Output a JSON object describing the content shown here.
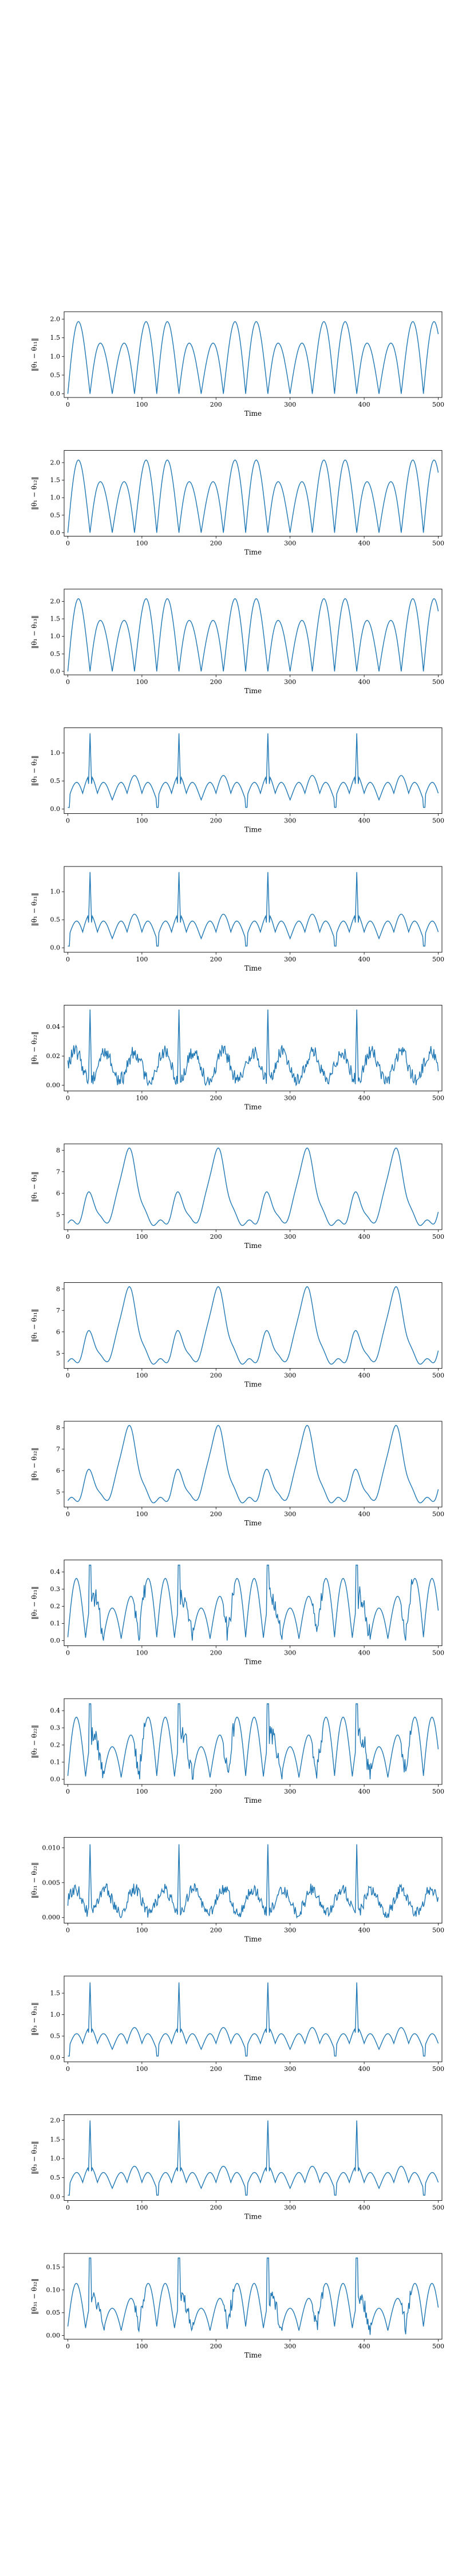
{
  "figure": {
    "background": "#ffffff",
    "line_color": "#1f77b4"
  },
  "chart_data": [
    {
      "type": "line",
      "ylabel": "‖θ₁ − θ₁₁‖",
      "xlabel": "Time",
      "xlim": [
        -5,
        505
      ],
      "ylim": [
        -0.1,
        2.2
      ],
      "yticks": [
        "0.0",
        "0.5",
        "1.0",
        "1.5",
        "2.0"
      ],
      "xticks": [
        "0",
        "100",
        "200",
        "300",
        "400",
        "500"
      ],
      "profile": "A",
      "amp": 2.05,
      "base": 0.0,
      "dip_depth": 0.9
    },
    {
      "type": "line",
      "ylabel": "‖θ₁ − θ₁₂‖",
      "xlabel": "Time",
      "xlim": [
        -5,
        505
      ],
      "ylim": [
        -0.1,
        2.35
      ],
      "yticks": [
        "0.0",
        "0.5",
        "1.0",
        "1.5",
        "2.0"
      ],
      "xticks": [
        "0",
        "100",
        "200",
        "300",
        "400",
        "500"
      ],
      "profile": "A",
      "amp": 2.2,
      "base": 0.0,
      "dip_depth": 1.0
    },
    {
      "type": "line",
      "ylabel": "‖θ₁ − θ₁₃‖",
      "xlabel": "Time",
      "xlim": [
        -5,
        505
      ],
      "ylim": [
        -0.1,
        2.35
      ],
      "yticks": [
        "0.0",
        "0.5",
        "1.0",
        "1.5",
        "2.0"
      ],
      "xticks": [
        "0",
        "100",
        "200",
        "300",
        "400",
        "500"
      ],
      "profile": "A",
      "amp": 2.2,
      "base": 0.0,
      "dip_depth": 1.0
    },
    {
      "type": "line",
      "ylabel": "‖θ₁ − θ₂‖",
      "xlabel": "Time",
      "xlim": [
        -5,
        505
      ],
      "ylim": [
        -0.08,
        1.45
      ],
      "yticks": [
        "0.0",
        "0.5",
        "1.0"
      ],
      "xticks": [
        "0",
        "100",
        "200",
        "300",
        "400",
        "500"
      ],
      "profile": "B",
      "amp": 0.6,
      "base": 0.0,
      "spike": 1.35
    },
    {
      "type": "line",
      "ylabel": "‖θ₁ − θ₂₁‖",
      "xlabel": "Time",
      "xlim": [
        -5,
        505
      ],
      "ylim": [
        -0.08,
        1.45
      ],
      "yticks": [
        "0.0",
        "0.5",
        "1.0"
      ],
      "xticks": [
        "0",
        "100",
        "200",
        "300",
        "400",
        "500"
      ],
      "profile": "B",
      "amp": 0.6,
      "base": 0.0,
      "spike": 1.35
    },
    {
      "type": "line",
      "ylabel": "‖θ₁ − θ₂₂‖",
      "xlabel": "Time",
      "xlim": [
        -5,
        505
      ],
      "ylim": [
        -0.004,
        0.055
      ],
      "yticks": [
        "0.00",
        "0.02",
        "0.04"
      ],
      "xticks": [
        "0",
        "100",
        "200",
        "300",
        "400",
        "500"
      ],
      "profile": "C",
      "amp": 0.02,
      "base": 0.003,
      "spike": 0.052
    },
    {
      "type": "line",
      "ylabel": "‖θ₁ − θ₃‖",
      "xlabel": "Time",
      "xlim": [
        -5,
        505
      ],
      "ylim": [
        4.3,
        8.3
      ],
      "yticks": [
        "5",
        "6",
        "7",
        "8"
      ],
      "xticks": [
        "0",
        "100",
        "200",
        "300",
        "400",
        "500"
      ],
      "profile": "D",
      "amp": 3.5,
      "base": 4.5
    },
    {
      "type": "line",
      "ylabel": "‖θ₁ − θ₃₁‖",
      "xlabel": "Time",
      "xlim": [
        -5,
        505
      ],
      "ylim": [
        4.3,
        8.3
      ],
      "yticks": [
        "5",
        "6",
        "7",
        "8"
      ],
      "xticks": [
        "0",
        "100",
        "200",
        "300",
        "400",
        "500"
      ],
      "profile": "D",
      "amp": 3.5,
      "base": 4.5
    },
    {
      "type": "line",
      "ylabel": "‖θ₁ − θ₃₂‖",
      "xlabel": "Time",
      "xlim": [
        -5,
        505
      ],
      "ylim": [
        4.3,
        8.3
      ],
      "yticks": [
        "5",
        "6",
        "7",
        "8"
      ],
      "xticks": [
        "0",
        "100",
        "200",
        "300",
        "400",
        "500"
      ],
      "profile": "D",
      "amp": 3.5,
      "base": 4.5
    },
    {
      "type": "line",
      "ylabel": "‖θ₂ − θ₂₁‖",
      "xlabel": "Time",
      "xlim": [
        -5,
        505
      ],
      "ylim": [
        -0.03,
        0.47
      ],
      "yticks": [
        "0.0",
        "0.1",
        "0.2",
        "0.3",
        "0.4"
      ],
      "xticks": [
        "0",
        "100",
        "200",
        "300",
        "400",
        "500"
      ],
      "profile": "E",
      "amp": 0.36,
      "base": 0.02,
      "spike": 0.44
    },
    {
      "type": "line",
      "ylabel": "‖θ₂ − θ₂₂‖",
      "xlabel": "Time",
      "xlim": [
        -5,
        505
      ],
      "ylim": [
        -0.03,
        0.47
      ],
      "yticks": [
        "0.0",
        "0.1",
        "0.2",
        "0.3",
        "0.4"
      ],
      "xticks": [
        "0",
        "100",
        "200",
        "300",
        "400",
        "500"
      ],
      "profile": "E",
      "amp": 0.36,
      "base": 0.02,
      "spike": 0.44
    },
    {
      "type": "line",
      "ylabel": "‖θ₂₁ − θ₂₂‖",
      "xlabel": "Time",
      "xlim": [
        -5,
        505
      ],
      "ylim": [
        -0.0008,
        0.0115
      ],
      "yticks": [
        "0.000",
        "0.005",
        "0.010"
      ],
      "xticks": [
        "0",
        "100",
        "200",
        "300",
        "400",
        "500"
      ],
      "profile": "C",
      "amp": 0.0035,
      "base": 0.0006,
      "spike": 0.0105
    },
    {
      "type": "line",
      "ylabel": "‖θ₃ − θ₃₁‖",
      "xlabel": "Time",
      "xlim": [
        -5,
        505
      ],
      "ylim": [
        -0.1,
        1.9
      ],
      "yticks": [
        "0.0",
        "0.5",
        "1.0",
        "1.5"
      ],
      "xticks": [
        "0",
        "100",
        "200",
        "300",
        "400",
        "500"
      ],
      "profile": "B",
      "amp": 0.7,
      "base": 0.0,
      "spike": 1.75
    },
    {
      "type": "line",
      "ylabel": "‖θ₃ − θ₃₂‖",
      "xlabel": "Time",
      "xlim": [
        -5,
        505
      ],
      "ylim": [
        -0.1,
        2.15
      ],
      "yticks": [
        "0.0",
        "0.5",
        "1.0",
        "1.5",
        "2.0"
      ],
      "xticks": [
        "0",
        "100",
        "200",
        "300",
        "400",
        "500"
      ],
      "profile": "B",
      "amp": 0.8,
      "base": 0.0,
      "spike": 2.0
    },
    {
      "type": "line",
      "ylabel": "‖θ₃₁ − θ₃₂‖",
      "xlabel": "Time",
      "xlim": [
        -5,
        505
      ],
      "ylim": [
        -0.008,
        0.18
      ],
      "yticks": [
        "0.00",
        "0.05",
        "0.10",
        "0.15"
      ],
      "xticks": [
        "0",
        "100",
        "200",
        "300",
        "400",
        "500"
      ],
      "profile": "E",
      "amp": 0.1,
      "base": 0.02,
      "spike": 0.17
    }
  ]
}
